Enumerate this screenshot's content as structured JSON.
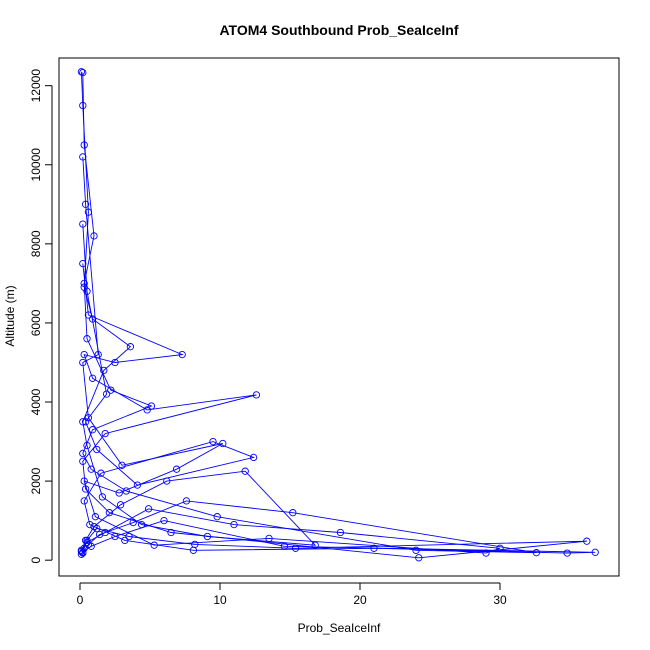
{
  "colors": {
    "series": "#0000ff",
    "axis": "#000000",
    "background": "#ffffff"
  },
  "chart_data": {
    "type": "line",
    "title": "ATOM4 Southbound Prob_SeaIceInf",
    "xlabel": "Prob_SeaIceInf",
    "ylabel": "Altitude (m)",
    "xlim": [
      -1.5,
      38.5
    ],
    "ylim": [
      -400,
      12700
    ],
    "xticks": [
      0,
      10,
      20,
      30
    ],
    "yticks": [
      0,
      2000,
      4000,
      6000,
      8000,
      10000,
      12000
    ],
    "xtick_labels": [
      "0",
      "10",
      "20",
      "30"
    ],
    "ytick_labels": [
      "0",
      "2000",
      "4000",
      "6000",
      "8000",
      "10000",
      "12000"
    ],
    "grid": false,
    "legend": "none",
    "markers": "open-circle",
    "series": [
      {
        "x": [
          0.1,
          0.3,
          0.5,
          1.2,
          3.5,
          8.2,
          15.4,
          36.2,
          24.2,
          6.5,
          2.1,
          0.4,
          0.2,
          1.8,
          12.6,
          4.8,
          0.9,
          0.3,
          2.5,
          7.3,
          0.6,
          0.2
        ],
        "y": [
          150,
          300,
          500,
          800,
          600,
          400,
          300,
          480,
          60,
          700,
          1200,
          1800,
          2500,
          3200,
          4180,
          3800,
          4600,
          5200,
          5000,
          5200,
          6200,
          7500
        ]
      },
      {
        "x": [
          0.2,
          0.8,
          2.5,
          6.0,
          14.6,
          36.8,
          34.8,
          21.0,
          8.1,
          3.2,
          0.7,
          0.3,
          1.5,
          9.5,
          12.4,
          4.1,
          1.2,
          0.4,
          1.9,
          0.5,
          0.2
        ],
        "y": [
          200,
          350,
          600,
          1000,
          350,
          200,
          180,
          300,
          250,
          500,
          900,
          1500,
          2200,
          3000,
          2600,
          1900,
          2800,
          3500,
          4200,
          6800,
          8500
        ]
      },
      {
        "x": [
          0.1,
          0.5,
          1.8,
          4.9,
          11.0,
          18.6,
          30.0,
          29.0,
          13.5,
          5.3,
          1.1,
          0.3,
          2.8,
          6.9,
          10.2,
          3.0,
          0.6,
          0.2,
          1.3,
          0.4,
          0.2
        ],
        "y": [
          250,
          450,
          700,
          1300,
          900,
          700,
          300,
          180,
          550,
          380,
          1100,
          2000,
          1700,
          2300,
          2950,
          2400,
          3600,
          5000,
          5200,
          9000,
          10200
        ]
      },
      {
        "x": [
          0.2,
          0.6,
          1.4,
          3.8,
          7.6,
          15.2,
          32.6,
          24.0,
          9.8,
          3.3,
          0.8,
          0.2,
          0.9,
          5.1,
          2.2,
          0.5,
          0.3,
          1.0,
          0.3,
          0.2
        ],
        "y": [
          180,
          400,
          650,
          950,
          1500,
          1200,
          190,
          250,
          1100,
          1750,
          2300,
          2700,
          3300,
          3900,
          4300,
          5600,
          7000,
          8200,
          10500,
          12330
        ]
      },
      {
        "x": [
          0.1,
          0.4,
          1.0,
          2.9,
          6.2,
          11.8,
          16.8,
          9.1,
          4.4,
          1.6,
          0.5,
          0.2,
          1.7,
          3.6,
          0.9,
          0.3,
          0.6,
          0.2,
          0.1
        ],
        "y": [
          220,
          500,
          850,
          1400,
          2000,
          2250,
          380,
          600,
          900,
          1600,
          2900,
          3500,
          4800,
          5400,
          6100,
          6900,
          8800,
          11500,
          12350
        ]
      }
    ]
  }
}
